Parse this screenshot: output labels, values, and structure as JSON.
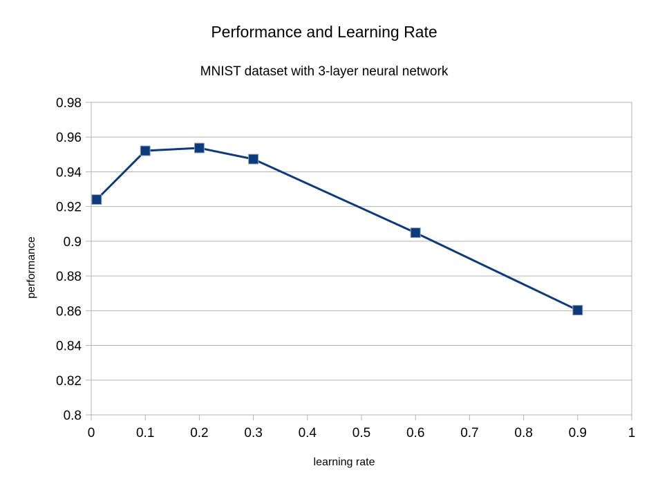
{
  "chart_data": {
    "type": "scatter",
    "title": "Performance and Learning Rate",
    "subtitle": "MNIST dataset with 3-layer neural network",
    "xlabel": "learning rate",
    "ylabel": "performance",
    "xlim": [
      0,
      1
    ],
    "ylim": [
      0.8,
      0.98
    ],
    "x_ticks": [
      0,
      0.1,
      0.2,
      0.3,
      0.4,
      0.5,
      0.6,
      0.7,
      0.8,
      0.9,
      1
    ],
    "x_tick_labels": [
      "0",
      "0.1",
      "0.2",
      "0.3",
      "0.4",
      "0.5",
      "0.6",
      "0.7",
      "0.8",
      "0.9",
      "1"
    ],
    "y_ticks": [
      0.8,
      0.82,
      0.84,
      0.86,
      0.88,
      0.9,
      0.92,
      0.94,
      0.96,
      0.98
    ],
    "y_tick_labels": [
      "0.8",
      "0.82",
      "0.84",
      "0.86",
      "0.88",
      "0.9",
      "0.92",
      "0.94",
      "0.96",
      "0.98"
    ],
    "grid": "horizontal",
    "legend": "none",
    "series": [
      {
        "x": [
          0.01,
          0.1,
          0.2,
          0.3,
          0.6,
          0.9
        ],
        "y": [
          0.924,
          0.9521,
          0.9537,
          0.9473,
          0.9049,
          0.8603
        ],
        "color": "#0d3a7a",
        "marker": "square"
      }
    ]
  }
}
